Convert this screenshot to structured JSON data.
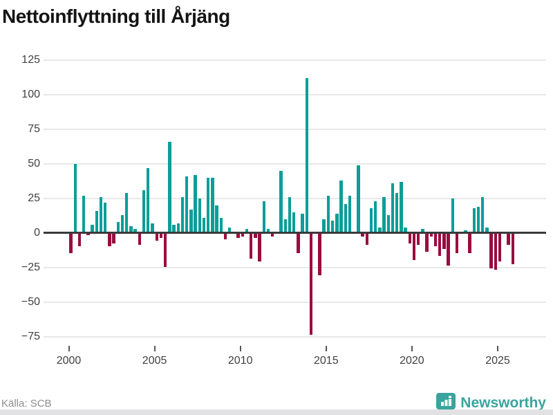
{
  "title": "Nettoinflyttning till Årjäng",
  "source": "Källa: SCB",
  "logo": {
    "text": "Newsworthy",
    "icon": "bar-chart-badge-icon"
  },
  "colors": {
    "positive": "#0b9e99",
    "negative": "#9a0c3f",
    "zero_line": "#3a3a3a",
    "grid": "#e8e8e8",
    "title_text": "#141414",
    "tick_text": "#404040",
    "source_text": "#8e8e8e",
    "logo_teal": "#3aa49e"
  },
  "chart_data": {
    "type": "bar",
    "title": "Nettoinflyttning till Årjäng",
    "xlabel": "",
    "ylabel": "",
    "ylim": [
      -85,
      130
    ],
    "yticks": [
      125,
      100,
      75,
      50,
      25,
      0,
      -25,
      -50,
      -75
    ],
    "xticks": [
      2000,
      2005,
      2010,
      2015,
      2020,
      2025
    ],
    "grid": true,
    "legend": "none",
    "x_unit": "quarter",
    "categories": [
      "2000 Q1",
      "2000 Q2",
      "2000 Q3",
      "2000 Q4",
      "2001 Q1",
      "2001 Q2",
      "2001 Q3",
      "2001 Q4",
      "2002 Q1",
      "2002 Q2",
      "2002 Q3",
      "2002 Q4",
      "2003 Q1",
      "2003 Q2",
      "2003 Q3",
      "2003 Q4",
      "2004 Q1",
      "2004 Q2",
      "2004 Q3",
      "2004 Q4",
      "2005 Q1",
      "2005 Q2",
      "2005 Q3",
      "2005 Q4",
      "2006 Q1",
      "2006 Q2",
      "2006 Q3",
      "2006 Q4",
      "2007 Q1",
      "2007 Q2",
      "2007 Q3",
      "2007 Q4",
      "2008 Q1",
      "2008 Q2",
      "2008 Q3",
      "2008 Q4",
      "2009 Q1",
      "2009 Q2",
      "2009 Q3",
      "2009 Q4",
      "2010 Q1",
      "2010 Q2",
      "2010 Q3",
      "2010 Q4",
      "2011 Q1",
      "2011 Q2",
      "2011 Q3",
      "2011 Q4",
      "2012 Q1",
      "2012 Q2",
      "2012 Q3",
      "2012 Q4",
      "2013 Q1",
      "2013 Q2",
      "2013 Q3",
      "2013 Q4",
      "2014 Q1",
      "2014 Q2",
      "2014 Q3",
      "2014 Q4",
      "2015 Q1",
      "2015 Q2",
      "2015 Q3",
      "2015 Q4",
      "2016 Q1",
      "2016 Q2",
      "2016 Q3",
      "2016 Q4",
      "2017 Q1",
      "2017 Q2",
      "2017 Q3",
      "2017 Q4",
      "2018 Q1",
      "2018 Q2",
      "2018 Q3",
      "2018 Q4",
      "2019 Q1",
      "2019 Q2",
      "2019 Q3",
      "2019 Q4",
      "2020 Q1",
      "2020 Q2",
      "2020 Q3",
      "2020 Q4",
      "2021 Q1",
      "2021 Q2",
      "2021 Q3",
      "2021 Q4",
      "2022 Q1",
      "2022 Q2",
      "2022 Q3",
      "2022 Q4",
      "2023 Q1",
      "2023 Q2",
      "2023 Q3",
      "2023 Q4",
      "2024 Q1",
      "2024 Q2",
      "2024 Q3",
      "2024 Q4",
      "2025 Q1",
      "2025 Q2",
      "2025 Q3",
      "2025 Q4"
    ],
    "values": [
      -14,
      49,
      -9,
      26,
      -1,
      5,
      15,
      25,
      21,
      -9,
      -7,
      7,
      12,
      28,
      4,
      2,
      -8,
      30,
      46,
      6,
      -5,
      -3,
      -24,
      65,
      5,
      6,
      25,
      40,
      16,
      41,
      24,
      10,
      39,
      39,
      19,
      10,
      -4,
      3,
      0,
      -3,
      -2,
      2,
      -18,
      -3,
      -20,
      22,
      2,
      -2,
      0,
      44,
      9,
      25,
      14,
      -14,
      13,
      111,
      -73,
      0,
      -30,
      9,
      26,
      8,
      13,
      37,
      20,
      26,
      0,
      48,
      -2,
      -8,
      17,
      22,
      3,
      25,
      12,
      35,
      28,
      36,
      3,
      -7,
      -19,
      -8,
      2,
      -13,
      -2,
      -9,
      -16,
      -11,
      -23,
      24,
      -14,
      0,
      1,
      -14,
      17,
      18,
      25,
      3,
      -25,
      -26,
      -20,
      0,
      -8,
      -22
    ]
  }
}
